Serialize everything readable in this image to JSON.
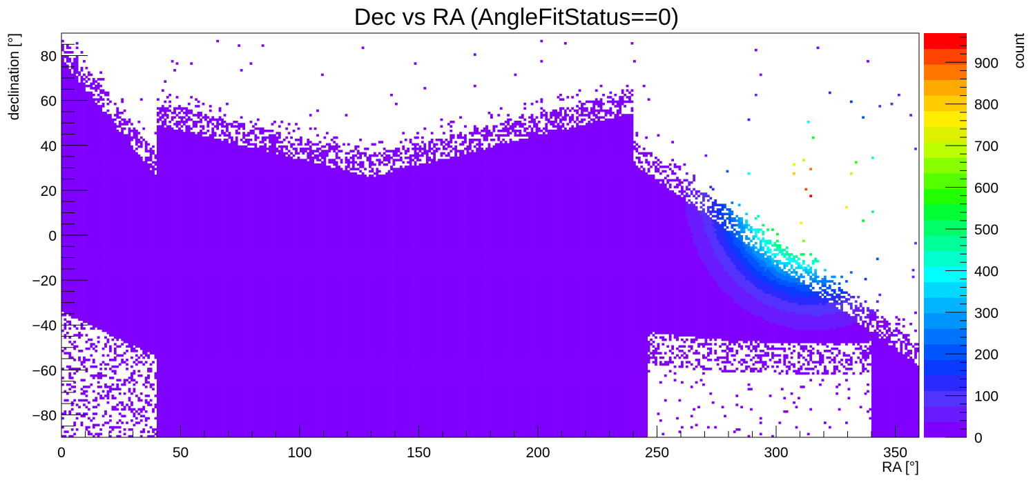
{
  "chart_data": {
    "type": "heatmap",
    "title": "Dec vs RA (AngleFitStatus==0)",
    "xlabel": "RA [°]",
    "ylabel": "declination [°]",
    "zlabel": "count",
    "xlim": [
      0,
      360
    ],
    "ylim": [
      -90,
      90
    ],
    "zlim": [
      0,
      970
    ],
    "x_ticks": [
      "0",
      "50",
      "100",
      "150",
      "200",
      "250",
      "300",
      "350"
    ],
    "x_tick_values": [
      0,
      50,
      100,
      150,
      200,
      250,
      300,
      350
    ],
    "y_ticks": [
      "−80",
      "−60",
      "−40",
      "−20",
      "0",
      "20",
      "40",
      "60",
      "80"
    ],
    "y_tick_values": [
      -80,
      -60,
      -40,
      -20,
      0,
      20,
      40,
      60,
      80
    ],
    "z_ticks": [
      "0",
      "100",
      "200",
      "300",
      "400",
      "500",
      "600",
      "700",
      "800",
      "900"
    ],
    "z_tick_values": [
      0,
      100,
      200,
      300,
      400,
      500,
      600,
      700,
      800,
      900
    ],
    "palette": [
      "#7f00ff",
      "#6a1aff",
      "#5533ff",
      "#2a2aff",
      "#0a3aff",
      "#0055ff",
      "#0074ff",
      "#0094ff",
      "#00b4ff",
      "#00d8ff",
      "#00ffff",
      "#00ffcc",
      "#00ff99",
      "#00ff66",
      "#00ff33",
      "#22ff00",
      "#55ff00",
      "#88ff00",
      "#bbff00",
      "#ddf000",
      "#ffee00",
      "#ffcc00",
      "#ffaa00",
      "#ff7700",
      "#ff4400",
      "#ff0000"
    ],
    "hotspot": {
      "ra": 316,
      "dec": 18,
      "peak_count": 950
    },
    "grid": false,
    "legend": "color bar on right"
  }
}
